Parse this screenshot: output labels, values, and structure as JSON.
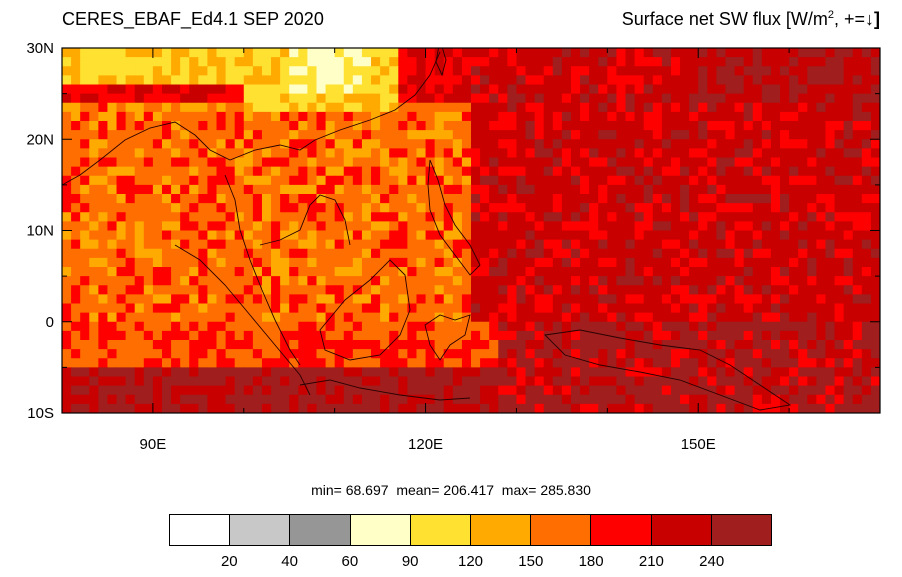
{
  "title_left": "CERES_EBAF_Ed4.1 SEP 2020",
  "title_right": {
    "prefix": "Surface net SW flux [W/m",
    "superscript": "2",
    "suffix": ", +=↓",
    "close": "]"
  },
  "stats": {
    "min_label": "min=",
    "min": "68.697",
    "mean_label": "mean=",
    "mean": "206.417",
    "max_label": "max=",
    "max": "285.830"
  },
  "map": {
    "lon_range": [
      80,
      170
    ],
    "lat_range": [
      -10,
      30
    ],
    "lat_ticks": [
      {
        "value": 30,
        "label": "30N"
      },
      {
        "value": 20,
        "label": "20N"
      },
      {
        "value": 10,
        "label": "10N"
      },
      {
        "value": 0,
        "label": "0"
      },
      {
        "value": -10,
        "label": "10S"
      }
    ],
    "lon_ticks": [
      {
        "value": 90,
        "label": "90E"
      },
      {
        "value": 120,
        "label": "120E"
      },
      {
        "value": 150,
        "label": "150E"
      }
    ],
    "grid_lon": [
      80,
      180
    ]
  },
  "colorbar": {
    "colors": [
      "#ffffff",
      "#c8c8c8",
      "#969696",
      "#ffffc8",
      "#ffe132",
      "#ffaa00",
      "#ff6e00",
      "#ff0000",
      "#c80000",
      "#a01e1e"
    ],
    "labels": [
      "20",
      "40",
      "60",
      "90",
      "120",
      "150",
      "180",
      "210",
      "240"
    ]
  }
}
